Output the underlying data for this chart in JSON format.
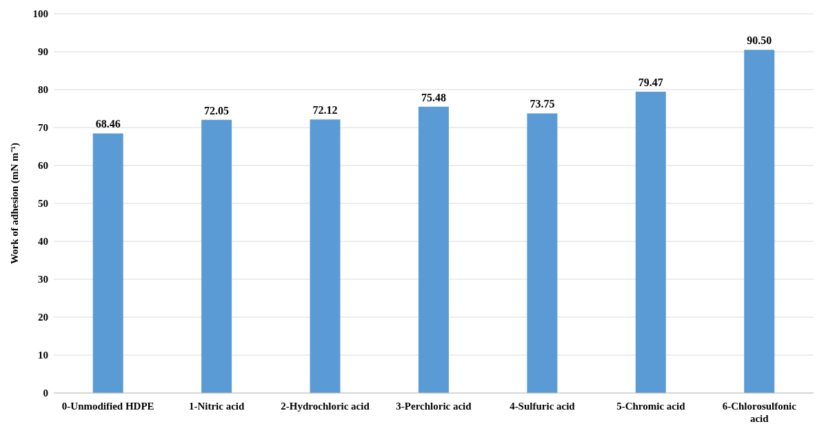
{
  "chart_data": {
    "type": "bar",
    "ylabel": "Work of adhesion (mN m⁻¹)",
    "categories": [
      "0-Unmodified HDPE",
      "1-Nitric acid",
      "2-Hydrochloric acid",
      "3-Perchloric acid",
      "4-Sulfuric acid",
      "5-Chromic acid",
      "6-Chlorosulfonic acid"
    ],
    "values": [
      68.46,
      72.05,
      72.12,
      75.48,
      73.75,
      79.47,
      90.5
    ],
    "value_labels": [
      "68.46",
      "72.05",
      "72.12",
      "75.48",
      "73.75",
      "79.47",
      "90.50"
    ],
    "color": "#5b9bd5",
    "ylim": [
      0,
      100
    ],
    "yticks": [
      0,
      10,
      20,
      30,
      40,
      50,
      60,
      70,
      80,
      90,
      100
    ],
    "grid": "y"
  }
}
